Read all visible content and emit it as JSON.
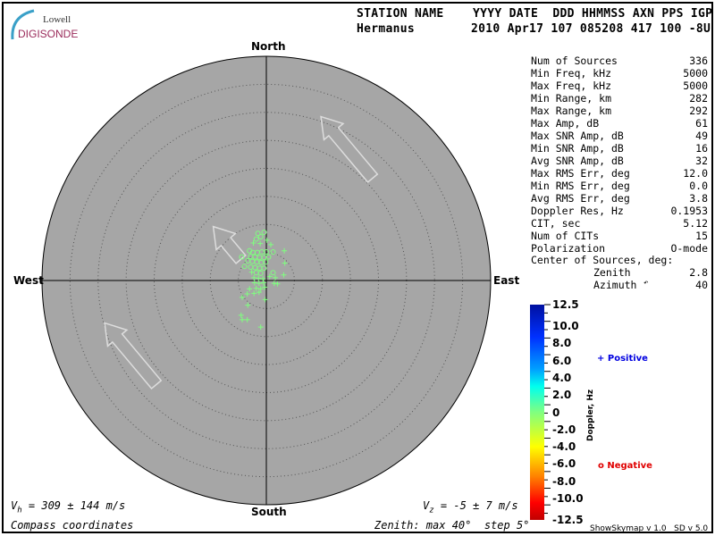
{
  "logo": {
    "top": "Lowell",
    "bottom": "DIGISONDE"
  },
  "header": {
    "line1": "STATION NAME    YYYY DATE  DDD HHMMSS AXN PPS IGP",
    "station": "Hermanus",
    "line2_values": "2010 Apr17 107 085208 417 100 -8U"
  },
  "compass": {
    "north": "North",
    "south": "South",
    "east": "East",
    "west": "West"
  },
  "stats": [
    {
      "label": "Num of Sources",
      "value": "336"
    },
    {
      "label": "Min Freq, kHz",
      "value": "5000"
    },
    {
      "label": "Max Freq, kHz",
      "value": "5000"
    },
    {
      "label": "Min Range, km",
      "value": "282"
    },
    {
      "label": "Max Range, km",
      "value": "292"
    },
    {
      "label": "Max Amp, dB",
      "value": "61"
    },
    {
      "label": "Max SNR Amp, dB",
      "value": "49"
    },
    {
      "label": "Min SNR Amp, dB",
      "value": "16"
    },
    {
      "label": "Avg SNR Amp, dB",
      "value": "32"
    },
    {
      "label": "Max RMS Err, deg",
      "value": "12.0"
    },
    {
      "label": "Min RMS Err, deg",
      "value": "0.0"
    },
    {
      "label": "Avg RMS Err, deg",
      "value": "3.8"
    },
    {
      "label": "Doppler Res, Hz",
      "value": "0.1953"
    },
    {
      "label": "CIT, sec",
      "value": "5.12"
    },
    {
      "label": "Num of CITs",
      "value": "15"
    },
    {
      "label": "Polarization",
      "value": "O-mode"
    }
  ],
  "center": {
    "label": "Center of Sources, deg:",
    "zenith_label": "Zenith",
    "zenith": "2.8",
    "azimuth_label": "Azimuth",
    "azimuth": "40"
  },
  "colorbar": {
    "ticks": [
      "12.5",
      "10.0",
      "8.0",
      "6.0",
      "4.0",
      "2.0",
      "0",
      "-2.0",
      "-4.0",
      "-6.0",
      "-8.0",
      "-10.0",
      "-12.5"
    ],
    "label": "Doppler, Hz",
    "positive": "Positive",
    "negative": "Negative",
    "positive_color": "#0000e0",
    "negative_color": "#e00000"
  },
  "footer": {
    "vh": "= 309 ± 144 m/s",
    "vz": "= -5 ± 7 m/s",
    "coords": "Compass coordinates",
    "zenith": "Zenith: max 40°  step 5°",
    "version": "ShowSkymap v 1.0   SD v 5.0"
  },
  "chart_data": {
    "type": "scatter",
    "zenith_max_deg": 40,
    "zenith_step_deg": 5,
    "point_color": "#7fff7f",
    "points_east_north_deg": [
      [
        -1.5,
        8.4,
        "o"
      ],
      [
        -0.4,
        8.6,
        "o"
      ],
      [
        -1.0,
        7.8,
        "o"
      ],
      [
        -1.8,
        7.4,
        "o"
      ],
      [
        0.1,
        7.2,
        "+"
      ],
      [
        -1.1,
        6.6,
        "+"
      ],
      [
        -2.3,
        6.7,
        "+"
      ],
      [
        0.8,
        6.4,
        "+"
      ],
      [
        -3.0,
        5.3,
        "o"
      ],
      [
        -2.4,
        5.0,
        "o"
      ],
      [
        -1.6,
        5.0,
        "o"
      ],
      [
        -0.8,
        5.1,
        "o"
      ],
      [
        0.0,
        5.1,
        "o"
      ],
      [
        1.2,
        5.1,
        "o"
      ],
      [
        3.2,
        5.3,
        "+"
      ],
      [
        -4.4,
        4.2,
        "o"
      ],
      [
        -2.8,
        4.3,
        "o"
      ],
      [
        -2.0,
        4.2,
        "o"
      ],
      [
        -1.2,
        4.1,
        "o"
      ],
      [
        -0.4,
        4.1,
        "o"
      ],
      [
        0.4,
        4.2,
        "o"
      ],
      [
        -3.3,
        3.5,
        "o"
      ],
      [
        -2.5,
        3.4,
        "o"
      ],
      [
        -1.7,
        3.3,
        "o"
      ],
      [
        -0.9,
        3.2,
        "o"
      ],
      [
        -0.1,
        3.3,
        "o"
      ],
      [
        3.3,
        3.1,
        "+"
      ],
      [
        -3.9,
        2.5,
        "o"
      ],
      [
        -2.8,
        2.4,
        "o"
      ],
      [
        -2.0,
        2.3,
        "o"
      ],
      [
        -1.2,
        2.2,
        "o"
      ],
      [
        -0.4,
        2.2,
        "o"
      ],
      [
        -2.6,
        1.5,
        "+"
      ],
      [
        -1.8,
        1.4,
        "o"
      ],
      [
        -1.0,
        1.3,
        "o"
      ],
      [
        1.2,
        1.4,
        "o"
      ],
      [
        3.1,
        1.0,
        "+"
      ],
      [
        -2.2,
        0.5,
        "+"
      ],
      [
        -1.4,
        0.4,
        "+"
      ],
      [
        -0.6,
        0.3,
        "+"
      ],
      [
        0.6,
        0.7,
        "+"
      ],
      [
        1.6,
        0.5,
        "+"
      ],
      [
        -2.1,
        -0.4,
        "+"
      ],
      [
        -1.3,
        -0.5,
        "+"
      ],
      [
        -0.5,
        -0.4,
        "+"
      ],
      [
        1.4,
        -0.5,
        "+"
      ],
      [
        2.0,
        -0.6,
        "+"
      ],
      [
        -3.0,
        -1.5,
        "+"
      ],
      [
        -1.8,
        -1.4,
        "+"
      ],
      [
        -1.0,
        -1.5,
        "+"
      ],
      [
        -0.3,
        -1.2,
        "+"
      ],
      [
        -3.4,
        -2.4,
        "+"
      ],
      [
        -2.2,
        -2.3,
        "+"
      ],
      [
        -1.3,
        -2.1,
        "+"
      ],
      [
        -4.3,
        -3.0,
        "+"
      ],
      [
        -0.2,
        -3.4,
        "+"
      ],
      [
        -3.3,
        -4.4,
        "+"
      ],
      [
        -4.5,
        -6.2,
        "+"
      ],
      [
        -4.3,
        -7.0,
        "+"
      ],
      [
        -3.4,
        -7.0,
        "+"
      ],
      [
        -1.0,
        -8.3,
        "+"
      ]
    ]
  }
}
